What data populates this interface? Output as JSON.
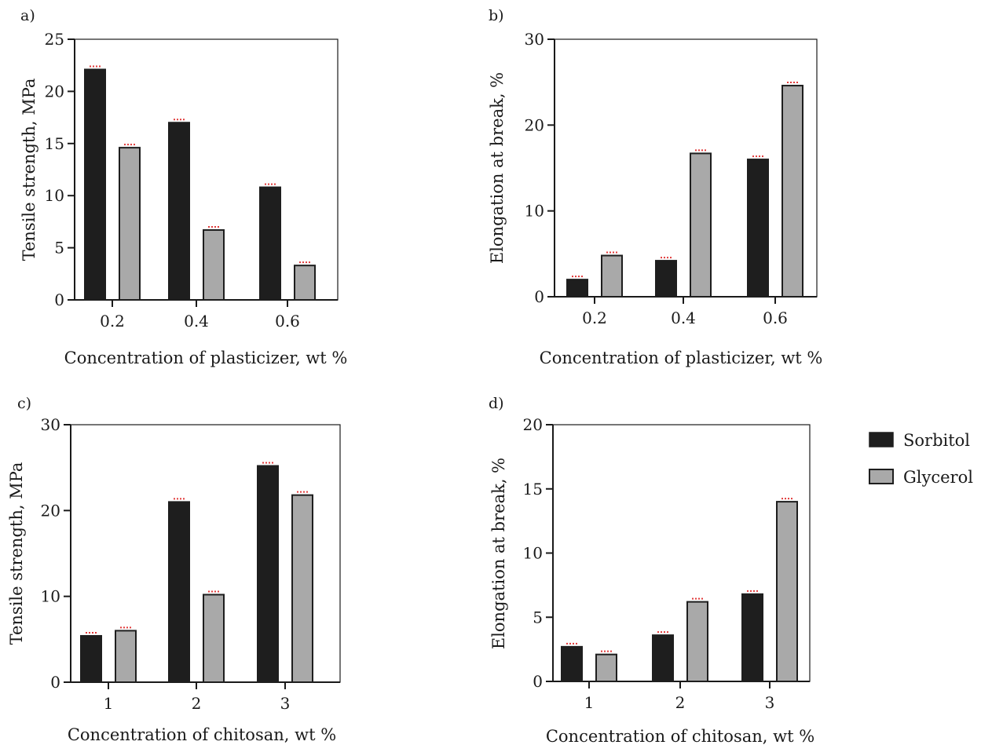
{
  "legend": [
    {
      "name": "Sorbitol",
      "color": "#1e1e1e"
    },
    {
      "name": "Glycerol",
      "color": "#a9a9a9"
    }
  ],
  "chart_data": [
    {
      "panel": "a)",
      "type": "bar",
      "categories": [
        "0.2",
        "0.4",
        "0.6"
      ],
      "series": [
        {
          "name": "Sorbitol",
          "values": [
            22.1,
            17.0,
            10.8
          ]
        },
        {
          "name": "Glycerol",
          "values": [
            14.6,
            6.7,
            3.3
          ]
        }
      ],
      "xlabel": "Concentration of plasticizer, wt %",
      "ylabel": "Tensile strength, MPa",
      "ylim": [
        0,
        25
      ],
      "yticks": [
        0,
        5,
        10,
        15,
        20,
        25
      ],
      "grid": false
    },
    {
      "panel": "b)",
      "type": "bar",
      "categories": [
        "0.2",
        "0.4",
        "0.6"
      ],
      "series": [
        {
          "name": "Sorbitol",
          "values": [
            2.0,
            4.2,
            16.0
          ]
        },
        {
          "name": "Glycerol",
          "values": [
            4.8,
            16.7,
            24.6
          ]
        }
      ],
      "xlabel": "Concentration of plasticizer, wt %",
      "ylabel": "Elongation at break, %",
      "ylim": [
        0,
        30
      ],
      "yticks": [
        0,
        10,
        20,
        30
      ],
      "grid": false
    },
    {
      "panel": "c)",
      "type": "bar",
      "categories": [
        "1",
        "2",
        "3"
      ],
      "series": [
        {
          "name": "Sorbitol",
          "values": [
            5.4,
            21.0,
            25.2
          ]
        },
        {
          "name": "Glycerol",
          "values": [
            6.0,
            10.2,
            21.8
          ]
        }
      ],
      "xlabel": "Concentration of chitosan, wt %",
      "ylabel": "Tensile strength, MPa",
      "ylim": [
        0,
        30
      ],
      "yticks": [
        0,
        10,
        20,
        30
      ],
      "grid": false
    },
    {
      "panel": "d)",
      "type": "bar",
      "categories": [
        "1",
        "2",
        "3"
      ],
      "series": [
        {
          "name": "Sorbitol",
          "values": [
            2.7,
            3.6,
            6.8
          ]
        },
        {
          "name": "Glycerol",
          "values": [
            2.1,
            6.2,
            14.0
          ]
        }
      ],
      "xlabel": "Concentration of chitosan, wt %",
      "ylabel": "Elongation at break, %",
      "ylim": [
        0,
        20
      ],
      "yticks": [
        0,
        5,
        10,
        15,
        20
      ],
      "grid": false
    }
  ]
}
